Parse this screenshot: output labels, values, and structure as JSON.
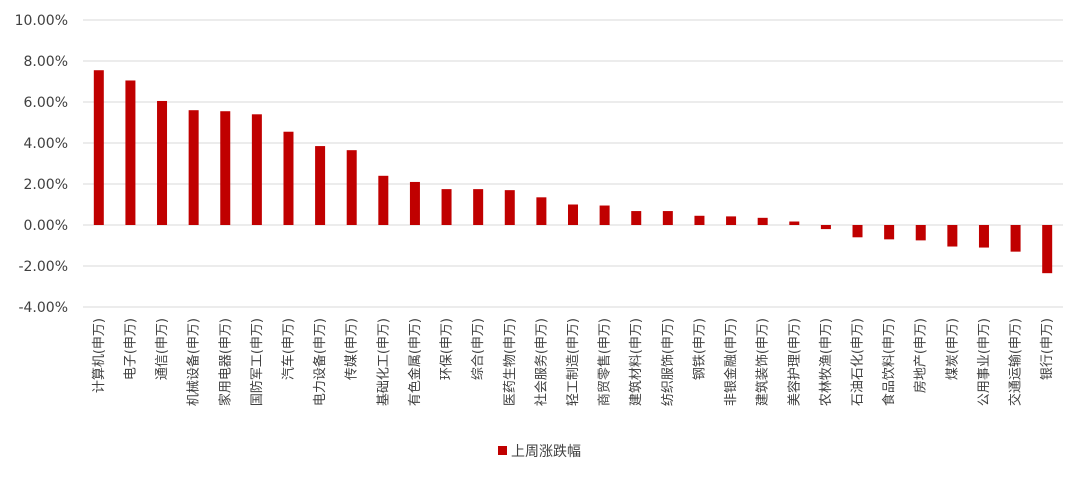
{
  "chart_data": {
    "type": "bar",
    "title": "",
    "xlabel": "",
    "ylabel": "",
    "ylim": [
      -4,
      10
    ],
    "yticks": [
      10,
      8,
      6,
      4,
      2,
      0,
      -2,
      -4
    ],
    "ytick_labels": [
      "10.00%",
      "8.00%",
      "6.00%",
      "4.00%",
      "2.00%",
      "0.00%",
      "-2.00%",
      "-4.00%"
    ],
    "grid": true,
    "legend_position": "bottom",
    "categories": [
      "计算机(申万)",
      "电子(申万)",
      "通信(申万)",
      "机械设备(申万)",
      "家用电器(申万)",
      "国防军工(申万)",
      "汽车(申万)",
      "电力设备(申万)",
      "传媒(申万)",
      "基础化工(申万)",
      "有色金属(申万)",
      "环保(申万)",
      "综合(申万)",
      "医药生物(申万)",
      "社会服务(申万)",
      "轻工制造(申万)",
      "商贸零售(申万)",
      "建筑材料(申万)",
      "纺织服饰(申万)",
      "钢铁(申万)",
      "非银金融(申万)",
      "建筑装饰(申万)",
      "美容护理(申万)",
      "农林牧渔(申万)",
      "石油石化(申万)",
      "食品饮料(申万)",
      "房地产(申万)",
      "煤炭(申万)",
      "公用事业(申万)",
      "交通运输(申万)",
      "银行(申万)"
    ],
    "series": [
      {
        "name": "上周涨跌幅",
        "color": "#C00000",
        "values": [
          7.55,
          7.05,
          6.05,
          5.6,
          5.55,
          5.4,
          4.55,
          3.85,
          3.65,
          2.4,
          2.1,
          1.75,
          1.75,
          1.7,
          1.35,
          1.0,
          0.95,
          0.68,
          0.68,
          0.45,
          0.42,
          0.35,
          0.17,
          -0.2,
          -0.6,
          -0.7,
          -0.75,
          -1.05,
          -1.1,
          -1.3,
          -2.35
        ]
      }
    ]
  }
}
